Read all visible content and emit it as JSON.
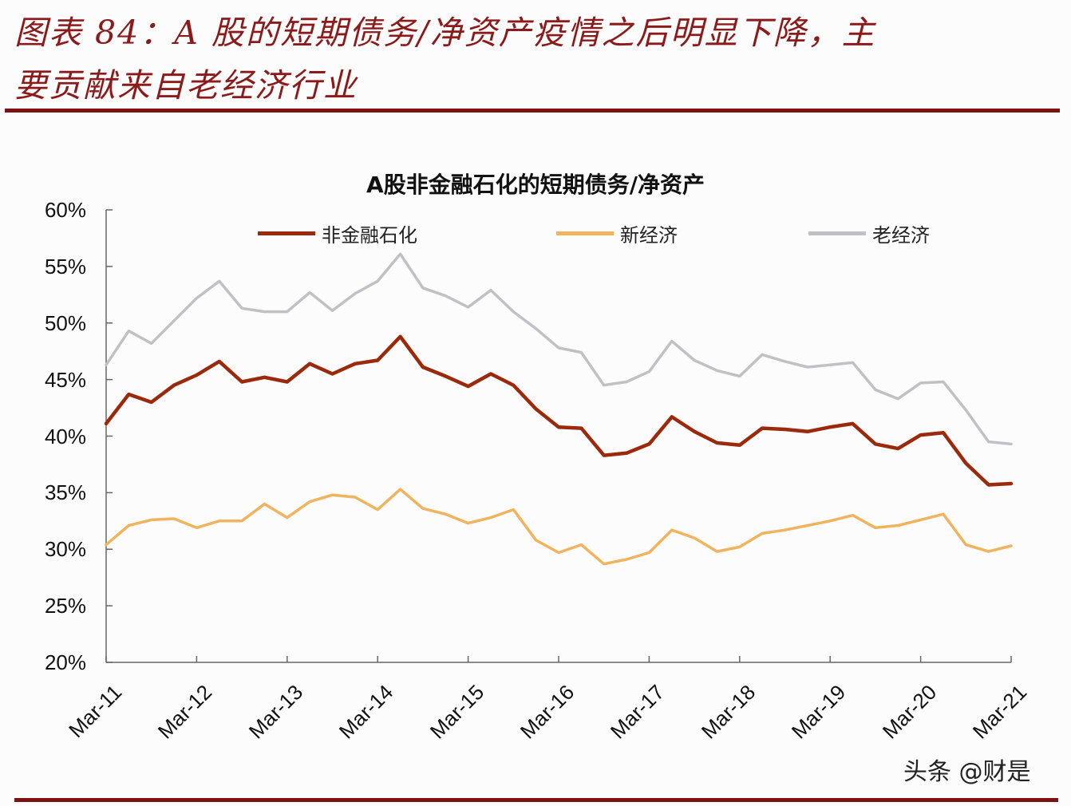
{
  "figure": {
    "title_line1": "图表 84：A 股的短期债务/净资产疫情之后明显下降，主",
    "title_line2": "要贡献来自老经济行业",
    "accent_color": "#7d1212"
  },
  "watermark": "头条 @财是",
  "chart_data": {
    "type": "line",
    "title": "A股非金融石化的短期债务/净资产",
    "xlabel": "",
    "ylabel": "",
    "ylim": [
      0.2,
      0.6
    ],
    "yticks": [
      "60%",
      "55%",
      "50%",
      "45%",
      "40%",
      "35%",
      "30%",
      "25%",
      "20%"
    ],
    "ytick_values": [
      0.6,
      0.55,
      0.5,
      0.45,
      0.4,
      0.35,
      0.3,
      0.25,
      0.2
    ],
    "xticks": [
      "Mar-11",
      "Mar-12",
      "Mar-13",
      "Mar-14",
      "Mar-15",
      "Mar-16",
      "Mar-17",
      "Mar-18",
      "Mar-19",
      "Mar-20",
      "Mar-21"
    ],
    "x_frequency": "quarterly",
    "x": [
      "Mar-11",
      "Jun-11",
      "Sep-11",
      "Dec-11",
      "Mar-12",
      "Jun-12",
      "Sep-12",
      "Dec-12",
      "Mar-13",
      "Jun-13",
      "Sep-13",
      "Dec-13",
      "Mar-14",
      "Jun-14",
      "Sep-14",
      "Dec-14",
      "Mar-15",
      "Jun-15",
      "Sep-15",
      "Dec-15",
      "Mar-16",
      "Jun-16",
      "Sep-16",
      "Dec-16",
      "Mar-17",
      "Jun-17",
      "Sep-17",
      "Dec-17",
      "Mar-18",
      "Jun-18",
      "Sep-18",
      "Dec-18",
      "Mar-19",
      "Jun-19",
      "Sep-19",
      "Dec-19",
      "Mar-20",
      "Jun-20",
      "Sep-20",
      "Dec-20",
      "Mar-21"
    ],
    "grid": false,
    "legend_position": "top",
    "series": [
      {
        "name": "非金融石化",
        "color": "#9b2a0c",
        "width": 4.5,
        "values": [
          0.411,
          0.437,
          0.43,
          0.445,
          0.454,
          0.466,
          0.448,
          0.452,
          0.448,
          0.464,
          0.455,
          0.464,
          0.467,
          0.488,
          0.461,
          0.453,
          0.444,
          0.455,
          0.445,
          0.424,
          0.408,
          0.407,
          0.383,
          0.385,
          0.393,
          0.417,
          0.404,
          0.394,
          0.392,
          0.407,
          0.406,
          0.404,
          0.408,
          0.411,
          0.393,
          0.389,
          0.401,
          0.403,
          0.376,
          0.357,
          0.358
        ]
      },
      {
        "name": "新经济",
        "color": "#f0b35e",
        "width": 3.5,
        "values": [
          0.304,
          0.321,
          0.326,
          0.327,
          0.319,
          0.325,
          0.325,
          0.34,
          0.328,
          0.342,
          0.348,
          0.346,
          0.335,
          0.353,
          0.336,
          0.331,
          0.323,
          0.328,
          0.335,
          0.308,
          0.297,
          0.304,
          0.287,
          0.291,
          0.297,
          0.317,
          0.31,
          0.298,
          0.302,
          0.314,
          0.317,
          0.321,
          0.325,
          0.33,
          0.319,
          0.321,
          0.326,
          0.331,
          0.304,
          0.298,
          0.303
        ]
      },
      {
        "name": "老经济",
        "color": "#bfc1c5",
        "width": 3.5,
        "values": [
          0.463,
          0.493,
          0.482,
          0.502,
          0.522,
          0.537,
          0.513,
          0.51,
          0.51,
          0.527,
          0.511,
          0.526,
          0.537,
          0.561,
          0.531,
          0.524,
          0.514,
          0.529,
          0.51,
          0.495,
          0.478,
          0.474,
          0.445,
          0.448,
          0.457,
          0.484,
          0.467,
          0.458,
          0.453,
          0.472,
          0.466,
          0.461,
          0.463,
          0.465,
          0.441,
          0.433,
          0.447,
          0.448,
          0.423,
          0.395,
          0.393
        ]
      }
    ]
  }
}
